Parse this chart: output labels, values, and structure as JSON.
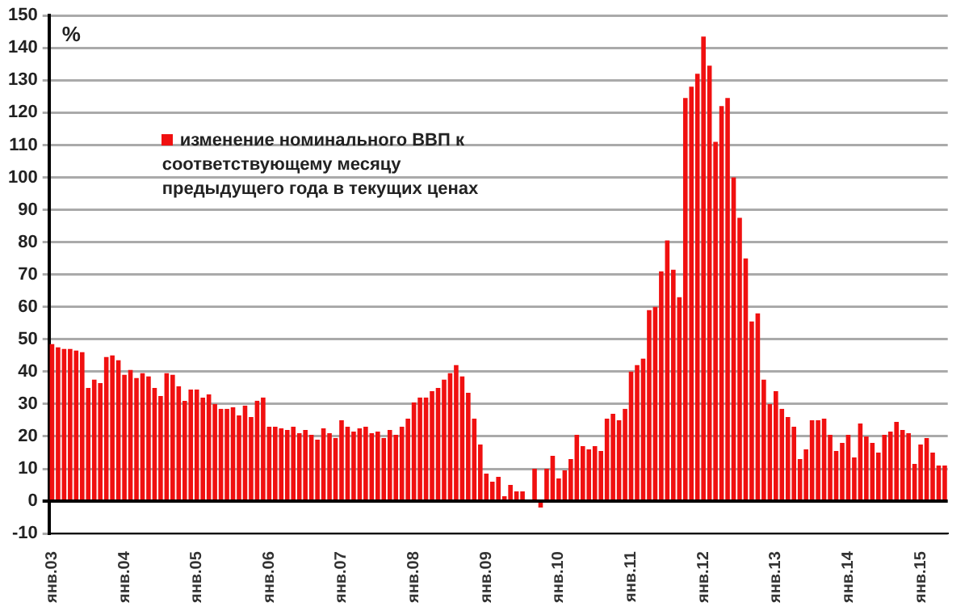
{
  "chart_data": {
    "type": "bar",
    "ylabel": "%",
    "legend": "top left",
    "grid": "y",
    "categories": [
      "янв.03",
      null,
      null,
      null,
      null,
      null,
      null,
      null,
      null,
      null,
      null,
      null,
      "янв.04",
      null,
      null,
      null,
      null,
      null,
      null,
      null,
      null,
      null,
      null,
      null,
      "янв.05",
      null,
      null,
      null,
      null,
      null,
      null,
      null,
      null,
      null,
      null,
      null,
      "янв.06",
      null,
      null,
      null,
      null,
      null,
      null,
      null,
      null,
      null,
      null,
      null,
      "янв.07",
      null,
      null,
      null,
      null,
      null,
      null,
      null,
      null,
      null,
      null,
      null,
      "янв.08",
      null,
      null,
      null,
      null,
      null,
      null,
      null,
      null,
      null,
      null,
      null,
      "янв.09",
      null,
      null,
      null,
      null,
      null,
      null,
      null,
      null,
      null,
      null,
      null,
      "янв.10",
      null,
      null,
      null,
      null,
      null,
      null,
      null,
      null,
      null,
      null,
      null,
      "янв.11",
      null,
      null,
      null,
      null,
      null,
      null,
      null,
      null,
      null,
      null,
      null,
      "янв.12",
      null,
      null,
      null,
      null,
      null,
      null,
      null,
      null,
      null,
      null,
      null,
      "янв.13",
      null,
      null,
      null,
      null,
      null,
      null,
      null,
      null,
      null,
      null,
      null,
      "янв.14",
      null,
      null,
      null,
      null,
      null,
      null,
      null,
      null,
      null,
      null,
      null,
      "янв.15",
      null,
      null,
      null,
      null
    ],
    "series": [
      {
        "name": "изменение номинального ВВП к соответствующему месяцу предыдущего года в текущих ценах",
        "color": "#f01010",
        "values": [
          48.5,
          47.5,
          47,
          47,
          46.5,
          46,
          35,
          37.5,
          36.5,
          44.5,
          45,
          43.5,
          39,
          40.5,
          38,
          39.5,
          38.5,
          35,
          32.5,
          39.5,
          39,
          35.5,
          31,
          34.5,
          34.5,
          32,
          33,
          30,
          28.5,
          28.5,
          29,
          26.5,
          29.5,
          26,
          31,
          32,
          23,
          23,
          22.5,
          22,
          23,
          21,
          22,
          20.5,
          19,
          22.5,
          21,
          19.5,
          25,
          23,
          21.5,
          22.5,
          23,
          21,
          21.5,
          19.5,
          22,
          20.5,
          23,
          25.5,
          30.5,
          32,
          32,
          34,
          35,
          37.5,
          39.5,
          42,
          38.5,
          33.5,
          25.5,
          17.5,
          8.5,
          6,
          7.5,
          1.5,
          5,
          3,
          3,
          0,
          10,
          -2,
          10,
          14,
          7,
          9.5,
          13,
          20.5,
          17,
          16,
          17,
          15.5,
          25.5,
          27,
          25,
          28.5,
          40,
          42,
          44,
          59,
          60,
          71,
          80.5,
          71.5,
          63,
          124.5,
          128,
          132,
          143.5,
          134.5,
          111,
          122,
          124.5,
          100,
          87.5,
          75,
          55.5,
          58,
          37.5,
          30,
          34,
          28.5,
          26,
          23,
          13,
          16,
          25,
          25,
          25.5,
          20.5,
          15.5,
          18,
          20.5,
          13.5,
          24,
          20,
          18,
          15,
          20.5,
          21.5,
          24.5,
          22,
          21,
          11.5,
          17.5,
          19.5,
          15,
          11,
          11
        ]
      }
    ],
    "ylim": [
      -10,
      150
    ],
    "yticks": [
      -10,
      0,
      10,
      20,
      30,
      40,
      50,
      60,
      70,
      80,
      90,
      100,
      110,
      120,
      130,
      140,
      150
    ]
  }
}
